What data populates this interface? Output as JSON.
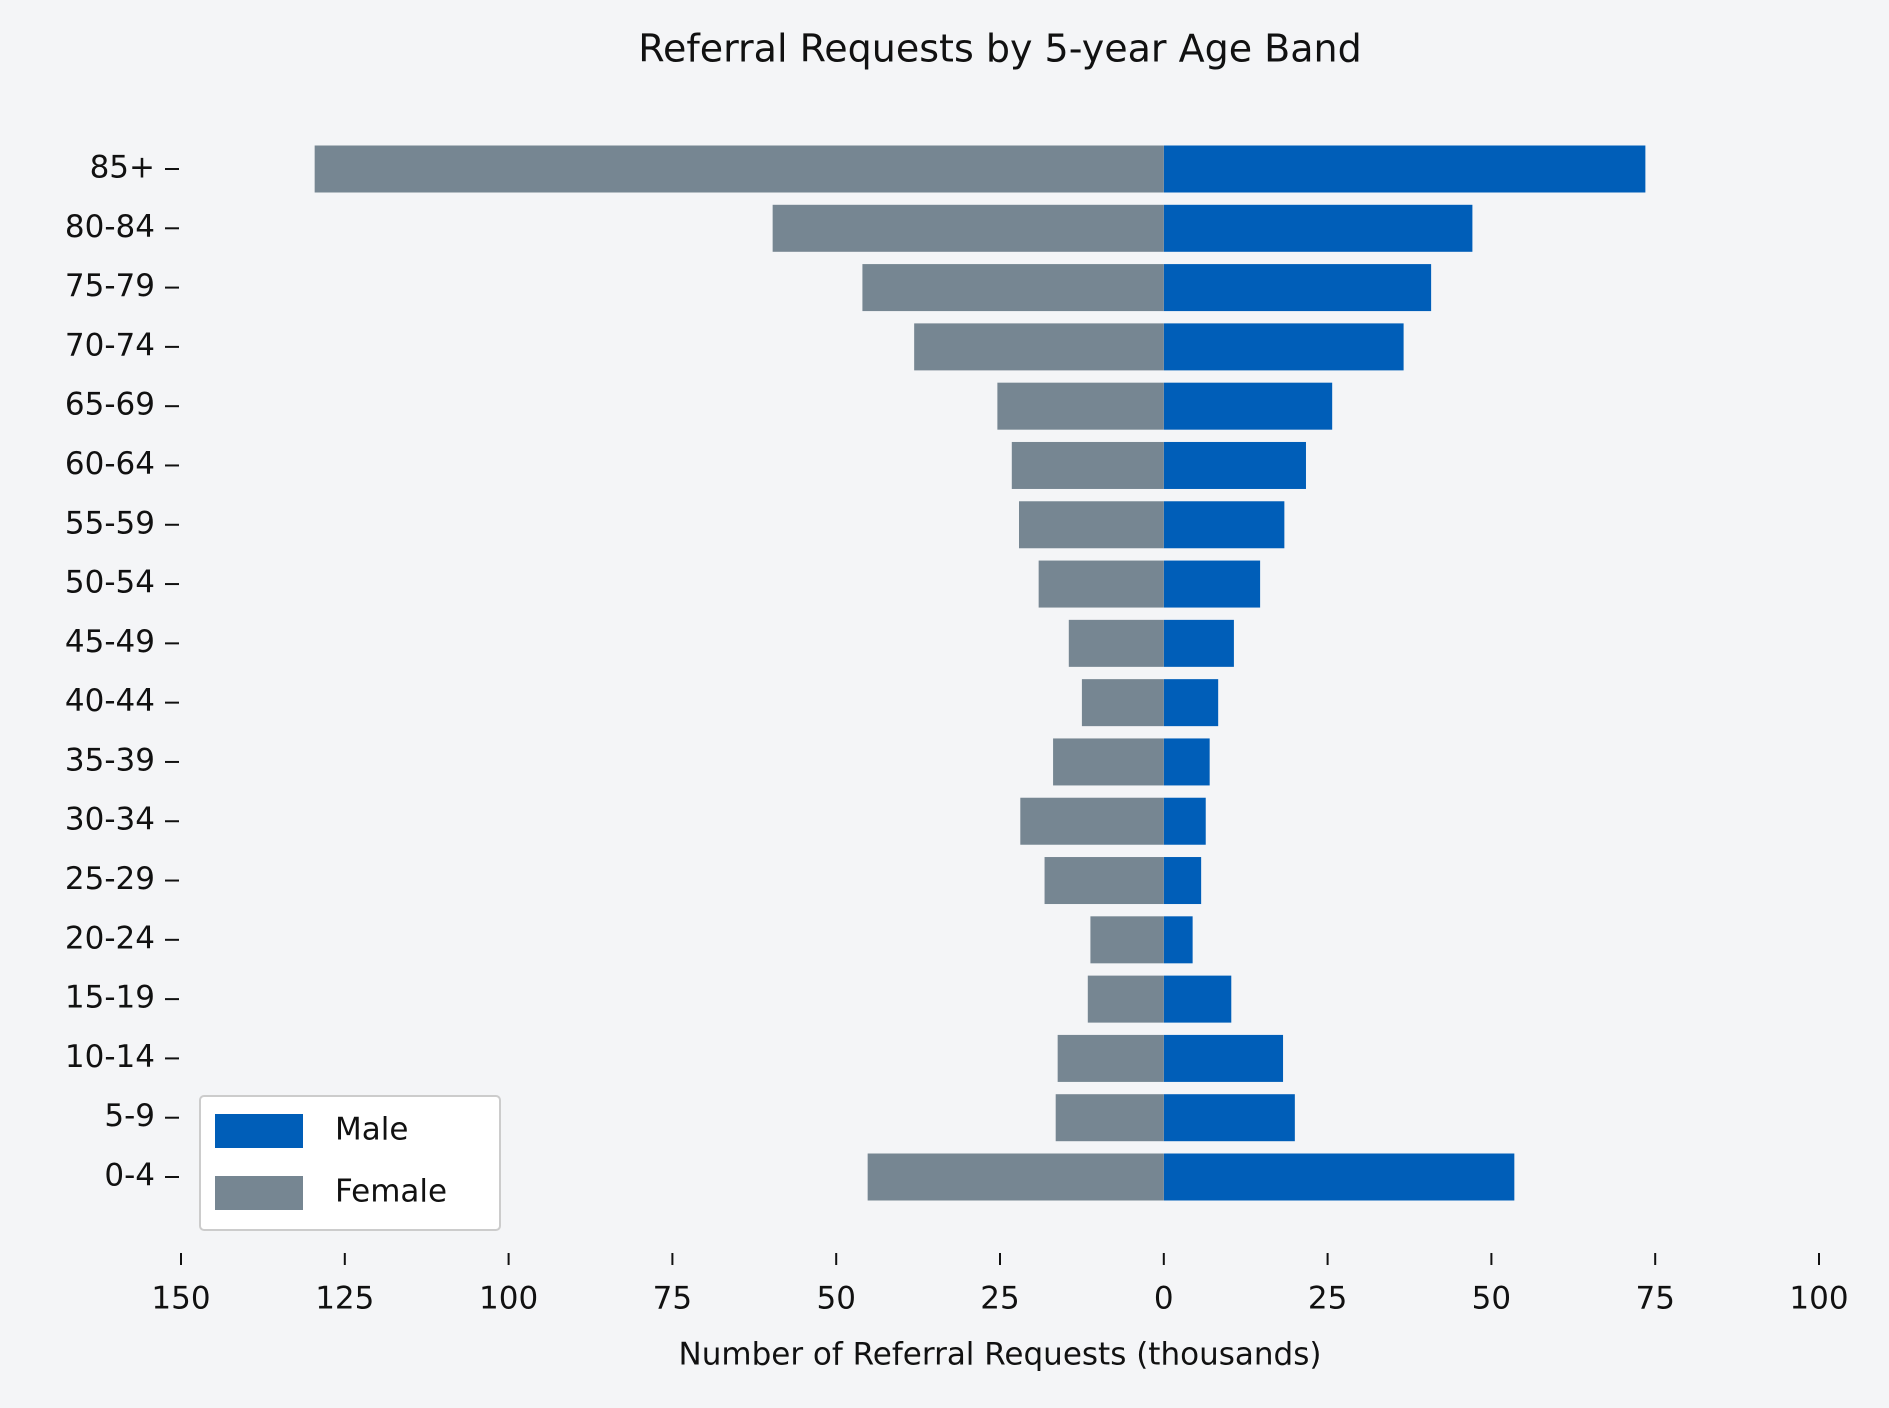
{
  "chart_data": {
    "type": "pyramid",
    "title": "Referral Requests by 5-year Age Band",
    "xlabel": "Number of Referral Requests (thousands)",
    "categories": [
      "0-4",
      "5-9",
      "10-14",
      "15-19",
      "20-24",
      "25-29",
      "30-34",
      "35-39",
      "40-44",
      "45-49",
      "50-54",
      "55-59",
      "60-64",
      "65-69",
      "70-74",
      "75-79",
      "80-84",
      "85+"
    ],
    "series": [
      {
        "name": "Male",
        "color": "#005eb8",
        "values": [
          53.5,
          20.0,
          18.2,
          10.3,
          4.4,
          5.7,
          6.4,
          7.0,
          8.3,
          10.7,
          14.7,
          18.4,
          21.7,
          25.7,
          36.6,
          40.8,
          47.1,
          73.5
        ]
      },
      {
        "name": "Female",
        "color": "#768692",
        "values": [
          -45.2,
          -16.5,
          -16.2,
          -11.6,
          -11.2,
          -18.2,
          -21.9,
          -16.9,
          -12.5,
          -14.5,
          -19.1,
          -22.1,
          -23.2,
          -25.4,
          -38.1,
          -46.0,
          -59.7,
          -129.6
        ]
      }
    ],
    "xlim": [
      -150,
      100
    ],
    "xticks": [
      {
        "value": -150,
        "label": "150"
      },
      {
        "value": -125,
        "label": "125"
      },
      {
        "value": -100,
        "label": "100"
      },
      {
        "value": -75,
        "label": "75"
      },
      {
        "value": -50,
        "label": "50"
      },
      {
        "value": -25,
        "label": "25"
      },
      0,
      25,
      50,
      75,
      100
    ],
    "legend": "lower left"
  }
}
